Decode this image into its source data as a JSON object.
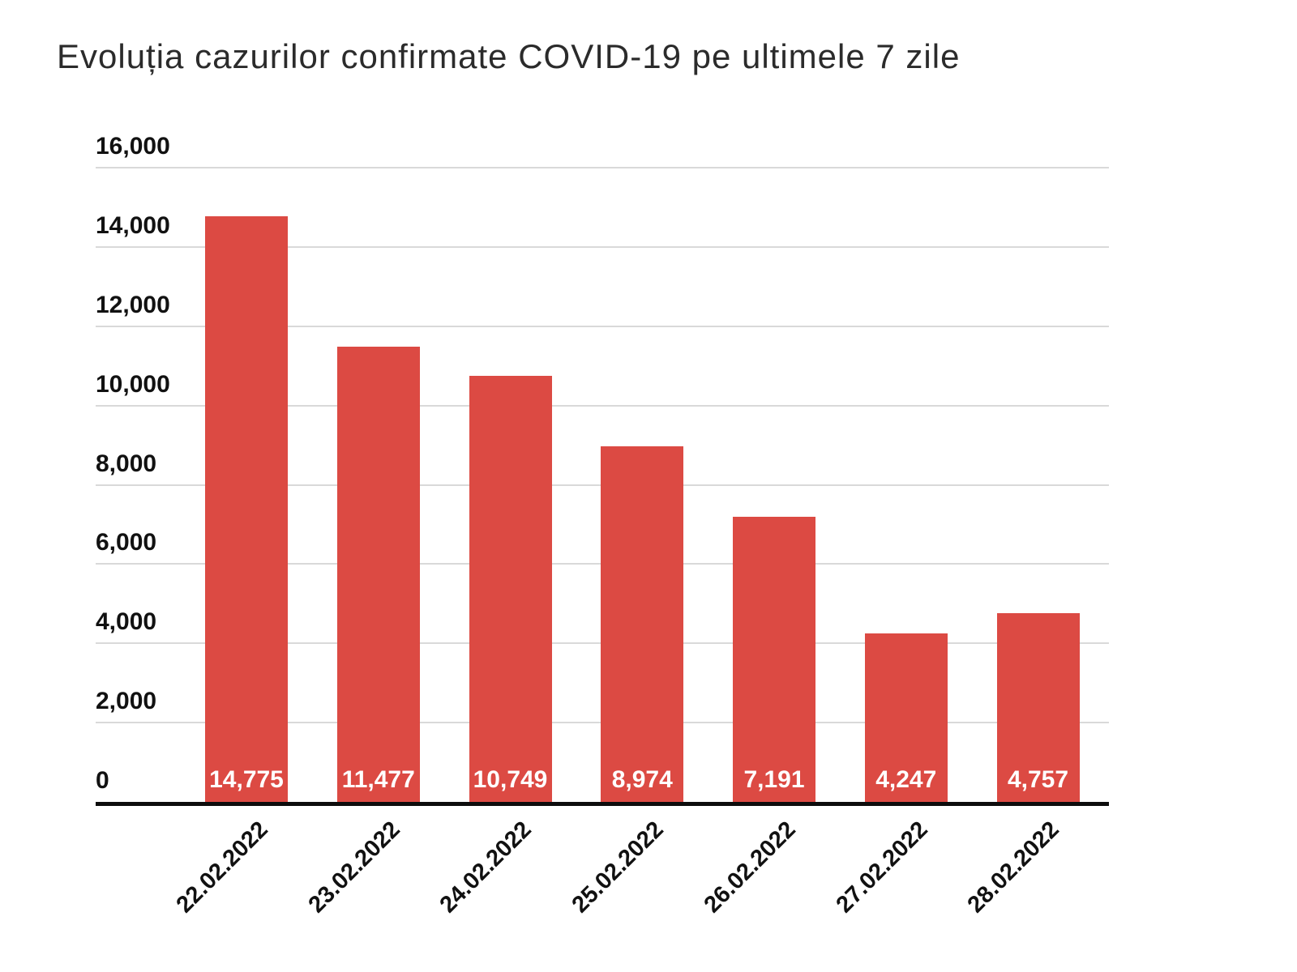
{
  "chart_data": {
    "type": "bar",
    "title": "Evoluția cazurilor confirmate COVID-19 pe ultimele 7 zile",
    "categories": [
      "22.02.2022",
      "23.02.2022",
      "24.02.2022",
      "25.02.2022",
      "26.02.2022",
      "27.02.2022",
      "28.02.2022"
    ],
    "values": [
      14775,
      11477,
      10749,
      8974,
      7191,
      4247,
      4757
    ],
    "value_labels": [
      "14,775",
      "11,477",
      "10,749",
      "8,974",
      "7,191",
      "4,247",
      "4,757"
    ],
    "xlabel": "",
    "ylabel": "",
    "ylim": [
      0,
      16000
    ],
    "y_ticks": [
      {
        "value": 0,
        "label": "0"
      },
      {
        "value": 2000,
        "label": "2,000"
      },
      {
        "value": 4000,
        "label": "4,000"
      },
      {
        "value": 6000,
        "label": "6,000"
      },
      {
        "value": 8000,
        "label": "8,000"
      },
      {
        "value": 10000,
        "label": "10,000"
      },
      {
        "value": 12000,
        "label": "12,000"
      },
      {
        "value": 14000,
        "label": "14,000"
      },
      {
        "value": 16000,
        "label": "16,000"
      }
    ],
    "grid": true,
    "legend": "none",
    "colors": {
      "bar": "#dc4a43",
      "gridline": "#d9d9d9",
      "axis_line": "#0d0d0d",
      "tick_text": "#111111",
      "title_text": "#2b2b2b",
      "bar_label_text": "#ffffff",
      "background": "#ffffff"
    }
  }
}
